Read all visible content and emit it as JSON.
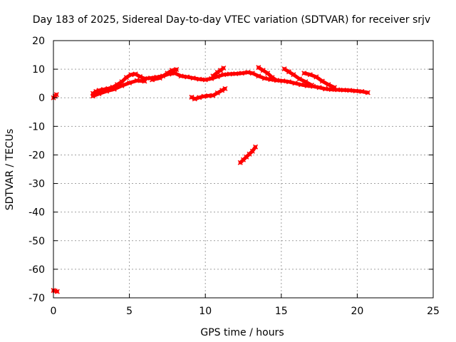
{
  "chart_data": {
    "type": "scatter",
    "title": "Day 183 of 2025, Sidereal Day-to-day VTEC variation (SDTVAR) for receiver srjv",
    "xlabel": "GPS time / hours",
    "ylabel": "SDTVAR / TECUs",
    "xlim": [
      0,
      25
    ],
    "ylim": [
      -70,
      20
    ],
    "xticks": [
      "0",
      "5",
      "10",
      "15",
      "20",
      "25"
    ],
    "yticks": [
      "20",
      "10",
      "0",
      "-10",
      "-20",
      "-30",
      "-40",
      "-50",
      "-60",
      "-70"
    ],
    "grid": true,
    "color": "#ff0000",
    "series": [
      {
        "points": [
          [
            0.0,
            0.0
          ],
          [
            0.1,
            0.6
          ],
          [
            0.2,
            1.1
          ]
        ]
      },
      {
        "points": [
          [
            0.0,
            -67.4
          ],
          [
            0.1,
            -67.6
          ],
          [
            0.25,
            -67.8
          ]
        ]
      },
      {
        "points": [
          [
            2.6,
            1.5
          ],
          [
            2.8,
            2.2
          ],
          [
            3.0,
            2.6
          ],
          [
            3.3,
            2.9
          ],
          [
            3.6,
            3.2
          ],
          [
            3.9,
            3.7
          ],
          [
            4.2,
            4.6
          ],
          [
            4.5,
            5.6
          ],
          [
            4.8,
            7.1
          ],
          [
            5.1,
            8.1
          ],
          [
            5.4,
            8.3
          ],
          [
            5.7,
            7.4
          ],
          [
            6.0,
            6.7
          ],
          [
            6.4,
            6.9
          ],
          [
            6.8,
            7.2
          ],
          [
            7.2,
            7.6
          ],
          [
            7.6,
            8.3
          ],
          [
            8.0,
            8.6
          ],
          [
            8.4,
            7.6
          ],
          [
            8.8,
            7.3
          ],
          [
            9.2,
            6.9
          ],
          [
            9.6,
            6.5
          ],
          [
            10.0,
            6.3
          ],
          [
            10.4,
            6.7
          ],
          [
            10.8,
            7.4
          ],
          [
            11.2,
            8.1
          ],
          [
            11.6,
            8.3
          ],
          [
            12.0,
            8.4
          ],
          [
            12.4,
            8.6
          ],
          [
            12.8,
            8.9
          ],
          [
            13.1,
            8.6
          ],
          [
            13.5,
            7.6
          ],
          [
            13.9,
            6.8
          ],
          [
            14.3,
            6.4
          ],
          [
            14.7,
            6.1
          ],
          [
            15.1,
            5.9
          ],
          [
            15.5,
            5.6
          ],
          [
            15.9,
            5.1
          ],
          [
            16.3,
            4.6
          ],
          [
            16.7,
            4.2
          ],
          [
            17.1,
            4.0
          ],
          [
            17.5,
            3.6
          ],
          [
            17.9,
            3.1
          ],
          [
            18.3,
            2.9
          ],
          [
            18.7,
            2.8
          ],
          [
            19.1,
            2.7
          ],
          [
            19.5,
            2.6
          ],
          [
            19.9,
            2.4
          ],
          [
            20.3,
            2.2
          ],
          [
            20.7,
            1.8
          ]
        ]
      },
      {
        "points": [
          [
            2.6,
            0.6
          ],
          [
            3.0,
            1.4
          ],
          [
            3.5,
            2.3
          ],
          [
            4.0,
            3.0
          ],
          [
            4.5,
            4.2
          ],
          [
            5.0,
            5.2
          ],
          [
            5.5,
            6.0
          ],
          [
            6.0,
            5.8
          ]
        ]
      },
      {
        "points": [
          [
            6.5,
            6.3
          ],
          [
            7.0,
            6.9
          ],
          [
            7.5,
            8.6
          ],
          [
            7.8,
            9.6
          ],
          [
            8.1,
            9.9
          ]
        ]
      },
      {
        "points": [
          [
            10.5,
            7.6
          ],
          [
            10.8,
            8.9
          ],
          [
            11.0,
            9.6
          ],
          [
            11.2,
            10.4
          ]
        ]
      },
      {
        "points": [
          [
            13.5,
            10.6
          ],
          [
            13.8,
            9.6
          ],
          [
            14.1,
            8.6
          ],
          [
            14.4,
            7.1
          ],
          [
            14.7,
            6.1
          ]
        ]
      },
      {
        "points": [
          [
            15.2,
            10.1
          ],
          [
            15.5,
            9.1
          ],
          [
            15.8,
            8.1
          ],
          [
            16.2,
            6.6
          ],
          [
            16.6,
            5.6
          ],
          [
            17.0,
            4.4
          ]
        ]
      },
      {
        "points": [
          [
            16.5,
            8.6
          ],
          [
            16.9,
            8.1
          ],
          [
            17.3,
            7.3
          ],
          [
            17.7,
            5.8
          ],
          [
            18.1,
            4.6
          ],
          [
            18.5,
            3.6
          ]
        ]
      },
      {
        "points": [
          [
            9.1,
            0.2
          ],
          [
            9.3,
            -0.4
          ],
          [
            9.6,
            0.1
          ],
          [
            9.9,
            0.5
          ],
          [
            10.2,
            0.7
          ],
          [
            10.5,
            0.8
          ],
          [
            10.8,
            1.7
          ],
          [
            11.1,
            2.6
          ],
          [
            11.3,
            3.2
          ]
        ]
      },
      {
        "points": [
          [
            12.3,
            -22.7
          ],
          [
            12.5,
            -21.7
          ],
          [
            12.7,
            -20.7
          ],
          [
            12.9,
            -19.7
          ],
          [
            13.1,
            -18.7
          ],
          [
            13.3,
            -17.2
          ]
        ]
      }
    ]
  }
}
